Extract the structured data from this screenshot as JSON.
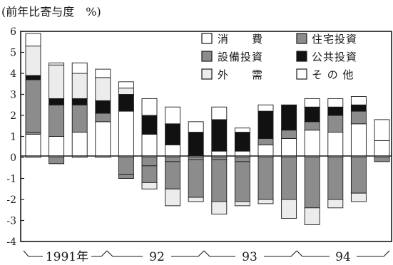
{
  "chart_data": {
    "type": "bar",
    "stacked": true,
    "title": "",
    "ylabel": "(前年比寄与度　%)",
    "ylim": [
      -4,
      6
    ],
    "yticks": [
      "6",
      "5",
      "4",
      "3",
      "2",
      "1",
      "0",
      "-1",
      "-2",
      "-3",
      "-4"
    ],
    "grid": false,
    "legend_position": "top-right",
    "year_labels": [
      "1991年",
      "92",
      "93",
      "94"
    ],
    "categories": [
      "1991 Q1",
      "1991 Q2",
      "1991 Q3",
      "1991 Q4",
      "1992 Q1",
      "1992 Q2",
      "1992 Q3",
      "1992 Q4",
      "1993 Q1",
      "1993 Q2",
      "1993 Q3",
      "1993 Q4",
      "1994 Q1",
      "1994 Q2",
      "1994 Q3",
      "1994 Q4",
      "1995 Q1"
    ],
    "series": [
      {
        "name": "消　　費",
        "key": "consumption",
        "color": "#ffffff",
        "values": [
          1.1,
          1.0,
          1.2,
          1.7,
          2.2,
          1.1,
          0.6,
          0.1,
          0.3,
          0.3,
          0.6,
          0.9,
          1.3,
          1.2,
          1.6,
          0.8,
          0.8
        ]
      },
      {
        "name": "住宅投資",
        "key": "housing",
        "color": "#8c8c8c",
        "values": [
          0.1,
          -0.3,
          0.0,
          0.4,
          -0.8,
          -0.4,
          -0.2,
          -0.1,
          -0.1,
          -0.2,
          0.3,
          0.4,
          0.4,
          0.8,
          0.6,
          0.0,
          0.0
        ]
      },
      {
        "name": "設備投資",
        "key": "equipment",
        "color": "#8c8c8c",
        "values": [
          2.5,
          1.5,
          1.3,
          0.0,
          -0.2,
          -0.8,
          -1.3,
          -1.8,
          -2.0,
          -1.9,
          -2.0,
          -2.0,
          -2.4,
          -2.0,
          -1.7,
          -0.2,
          -0.9
        ]
      },
      {
        "name": "公共投資",
        "key": "public",
        "color": "#111111",
        "values": [
          0.2,
          0.3,
          0.3,
          0.6,
          0.8,
          0.9,
          1.0,
          1.1,
          1.5,
          0.9,
          1.3,
          1.2,
          0.7,
          0.4,
          0.3,
          0.0,
          0.4
        ]
      },
      {
        "name": "外　　需",
        "key": "external",
        "color": "#ececec",
        "values": [
          1.4,
          1.6,
          1.2,
          1.1,
          0.3,
          -0.3,
          -0.8,
          -0.2,
          -0.6,
          -0.2,
          -0.2,
          -0.9,
          -0.8,
          -0.4,
          -0.4,
          0.0,
          0.0
        ]
      },
      {
        "name": "そ の 他",
        "key": "other",
        "color": "#ffffff",
        "values": [
          0.6,
          0.1,
          0.5,
          0.4,
          0.3,
          0.8,
          0.8,
          0.5,
          0.6,
          0.2,
          0.3,
          0.0,
          0.4,
          0.4,
          0.4,
          1.0,
          0.5
        ]
      }
    ]
  }
}
